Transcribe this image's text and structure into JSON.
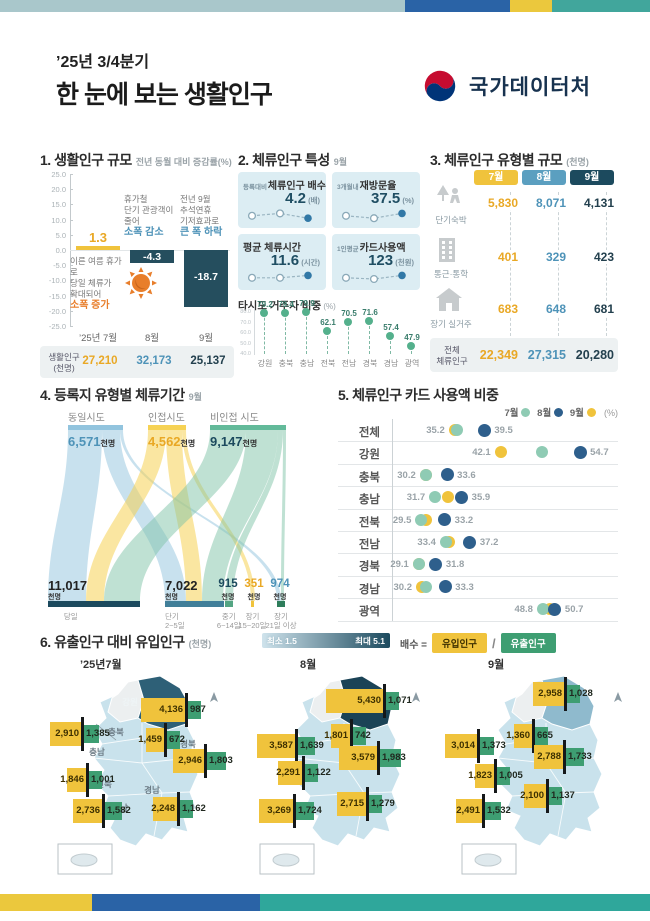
{
  "page": {
    "title_line1": "’25년 3/4분기",
    "title_line2": "한 눈에 보는 생활인구",
    "agency": "국가데이터처"
  },
  "palette": {
    "yellow": "#F0C33C",
    "yellowDeep": "#E9A825",
    "steel": "#4E93B8",
    "navy": "#1C4A5E",
    "navyBar": "#254E5E",
    "green": "#3E9E72",
    "mint": "#8FCBB4",
    "dotNavy": "#2E5F8C",
    "orange": "#E87E2B",
    "cardBg": "#DCEDF3",
    "grayBg": "#EDF1F2",
    "mapBase": "#C9E2EC",
    "mapGray": "#ECEFF0",
    "gangwonFills": [
      "#2E6077",
      "#1B4356",
      "#8FBACD"
    ],
    "srcBlue": "#92C4DE",
    "srcYellow": "#F6D254",
    "srcGreen": "#63BA9A",
    "tgtColors": [
      "#1C4A5E",
      "#417F99",
      "#54A583",
      "#F0C33C",
      "#2E7D5B"
    ],
    "tgtValueColors": [
      "#222222",
      "#222222",
      "#1C4A5E",
      "#E9A825",
      "#4E93B8"
    ]
  },
  "s1": {
    "title": "1. 생활인구 규모",
    "subtitle": "전년 동월 대비 증감률(%)",
    "yticks": [
      "25.0",
      "20.0",
      "15.0",
      "10.0",
      "5.0",
      "0.0",
      "-5.0",
      "-10.0",
      "-15.0",
      "-20.0",
      "-25.0"
    ],
    "categories": [
      "’25년 7월",
      "8월",
      "9월"
    ],
    "values": [
      1.3,
      -4.3,
      -18.7
    ],
    "value_labels": [
      "1.3",
      "-4.3",
      "-18.7"
    ],
    "annotations": [
      {
        "lines": [
          "이른 여름 휴가로",
          "당일 체류가",
          "확대되어"
        ],
        "emph": "소폭 증가",
        "tone": "orange"
      },
      {
        "lines": [
          "휴가철",
          "단기 관광객이",
          "줄어"
        ],
        "emph": "소폭 감소",
        "tone": "blue"
      },
      {
        "lines": [
          "전년 9월",
          "추석연휴",
          "기저효과로"
        ],
        "emph": "큰 폭 하락",
        "tone": "blue"
      }
    ],
    "footer": {
      "label_line1": "생활인구",
      "label_line2": "(천명)",
      "values": [
        "27,210",
        "32,173",
        "25,137"
      ]
    }
  },
  "s2": {
    "title": "2. 체류인구 특성",
    "subtitle": "9월",
    "cards": [
      {
        "prefix": "등록대비",
        "name": "체류인구 배수",
        "value": "4.2",
        "unit": "(배)",
        "spark": [
          3,
          4,
          2
        ]
      },
      {
        "prefix": "3개월내",
        "name": "재방문율",
        "value": "37.5",
        "unit": "(%)",
        "spark": [
          3,
          2,
          4
        ]
      },
      {
        "prefix": "",
        "name": "평균 체류시간",
        "value": "11.6",
        "unit": "(시간)",
        "spark": [
          3,
          3,
          4
        ]
      },
      {
        "prefix": "1인평균",
        "name": "카드사용액",
        "value": "123",
        "unit": "(천원)",
        "spark": [
          3,
          2.5,
          4
        ]
      }
    ],
    "lollipop": {
      "title": "타시도 거주자 비중",
      "unit": "(%)",
      "yticks": [
        "80.0",
        "70.0",
        "60.0",
        "50.0",
        "40.0"
      ],
      "categories": [
        "강원",
        "충북",
        "충남",
        "전북",
        "전남",
        "경북",
        "경남",
        "광역"
      ],
      "values": [
        79.2,
        79.4,
        79.9,
        62.1,
        70.5,
        71.6,
        57.4,
        47.9
      ]
    }
  },
  "s3": {
    "title": "3. 체류인구 유형별 규모",
    "unit": "(천명)",
    "months": [
      "7월",
      "8월",
      "9월"
    ],
    "rows": [
      {
        "label": "단기숙박",
        "icon": "camping-icon",
        "values": [
          "5,830",
          "8,071",
          "4,131"
        ]
      },
      {
        "label": "통근·통학",
        "icon": "building-icon",
        "values": [
          "401",
          "329",
          "423"
        ]
      },
      {
        "label": "장기 실거주",
        "icon": "house-icon",
        "values": [
          "683",
          "648",
          "681"
        ]
      }
    ],
    "total": {
      "label_line1": "전체",
      "label_line2": "체류인구",
      "values": [
        "22,349",
        "27,315",
        "20,280"
      ]
    }
  },
  "s4": {
    "title": "4. 등록지 유형별 체류기간",
    "subtitle": "9월",
    "unit_label": "천명",
    "sources": [
      {
        "label": "동일시도",
        "value": "6,571",
        "num": 6571
      },
      {
        "label": "인접시도",
        "value": "4,562",
        "num": 4562
      },
      {
        "label": "비인접 시도",
        "value": "9,147",
        "num": 9147
      }
    ],
    "targets": [
      {
        "label_lines": [
          "당일"
        ],
        "value": "11,017",
        "num": 11017
      },
      {
        "label_lines": [
          "단기",
          "2~5일"
        ],
        "value": "7,022",
        "num": 7022
      },
      {
        "label_lines": [
          "중기",
          "6~14일"
        ],
        "value": "915",
        "num": 915
      },
      {
        "label_lines": [
          "장기",
          "15~20일"
        ],
        "value": "351",
        "num": 351
      },
      {
        "label_lines": [
          "장기",
          "21일 이상"
        ],
        "value": "974",
        "num": 974
      }
    ]
  },
  "s5": {
    "title": "5. 체류인구 카드 사용액 비중",
    "unit": "(%)",
    "legend": [
      {
        "label": "7월",
        "key": "jul"
      },
      {
        "label": "8월",
        "key": "aug"
      },
      {
        "label": "9월",
        "key": "sep"
      }
    ],
    "rows": [
      {
        "label": "전체",
        "jul": 35.2,
        "aug": 39.5,
        "sep": 34.8,
        "left": "35.2",
        "right": "39.5"
      },
      {
        "label": "강원",
        "jul": 48.6,
        "aug": 54.7,
        "sep": 42.1,
        "left": "42.1",
        "right": "54.7"
      },
      {
        "label": "충북",
        "jul": 30.2,
        "aug": 33.6,
        "sep": 30.2,
        "left": "30.2",
        "right": "33.6"
      },
      {
        "label": "충남",
        "jul": 31.7,
        "aug": 35.9,
        "sep": 33.7,
        "left": "31.7",
        "right": "35.9"
      },
      {
        "label": "전북",
        "jul": 29.5,
        "aug": 33.2,
        "sep": 30.2,
        "left": "29.5",
        "right": "33.2"
      },
      {
        "label": "전남",
        "jul": 33.4,
        "aug": 37.2,
        "sep": 33.9,
        "left": "33.4",
        "right": "37.2"
      },
      {
        "label": "경북",
        "jul": 29.1,
        "aug": 31.8,
        "sep": 29.2,
        "left": "29.1",
        "right": "31.8"
      },
      {
        "label": "경남",
        "jul": 30.2,
        "aug": 33.3,
        "sep": 29.6,
        "left": "30.2",
        "right": "33.3"
      },
      {
        "label": "광역",
        "jul": 48.8,
        "aug": 50.7,
        "sep": 49.9,
        "left": "48.8",
        "right": "50.7"
      }
    ]
  },
  "s6": {
    "title": "6. 유출인구 대비 유입인구",
    "unit": "(천명)",
    "scale": {
      "min_label": "최소 1.5",
      "max_label": "최대 5.1"
    },
    "formula": {
      "prefix": "배수 =",
      "inflow_label": "유입인구",
      "slash": "/",
      "outflow_label": "유출인구"
    },
    "maps": [
      {
        "month": "’25년7월",
        "show_region_names": true,
        "regions": [
          {
            "name": "강원",
            "inflow": "4,136",
            "outflow": "987"
          },
          {
            "name": "충북",
            "inflow": "1,459",
            "outflow": "672"
          },
          {
            "name": "충남",
            "inflow": "2,910",
            "outflow": "1,385"
          },
          {
            "name": "전북",
            "inflow": "1,846",
            "outflow": "1,001"
          },
          {
            "name": "전남",
            "inflow": "2,736",
            "outflow": "1,582"
          },
          {
            "name": "경북",
            "inflow": "2,946",
            "outflow": "1,803"
          },
          {
            "name": "경남",
            "inflow": "2,248",
            "outflow": "1,162"
          }
        ]
      },
      {
        "month": "8월",
        "show_region_names": false,
        "regions": [
          {
            "name": "강원",
            "inflow": "5,430",
            "outflow": "1,071"
          },
          {
            "name": "충북",
            "inflow": "1,801",
            "outflow": "742"
          },
          {
            "name": "충남",
            "inflow": "3,587",
            "outflow": "1,639"
          },
          {
            "name": "전북",
            "inflow": "2,291",
            "outflow": "1,122"
          },
          {
            "name": "전남",
            "inflow": "3,269",
            "outflow": "1,724"
          },
          {
            "name": "경북",
            "inflow": "3,579",
            "outflow": "1,983"
          },
          {
            "name": "경남",
            "inflow": "2,715",
            "outflow": "1,279"
          }
        ]
      },
      {
        "month": "9월",
        "show_region_names": false,
        "regions": [
          {
            "name": "강원",
            "inflow": "2,958",
            "outflow": "1,028"
          },
          {
            "name": "충북",
            "inflow": "1,360",
            "outflow": "665"
          },
          {
            "name": "충남",
            "inflow": "3,014",
            "outflow": "1,373"
          },
          {
            "name": "전북",
            "inflow": "1,823",
            "outflow": "1,005"
          },
          {
            "name": "전남",
            "inflow": "2,491",
            "outflow": "1,532"
          },
          {
            "name": "경북",
            "inflow": "2,788",
            "outflow": "1,733"
          },
          {
            "name": "경남",
            "inflow": "2,100",
            "outflow": "1,137"
          }
        ]
      }
    ]
  },
  "chart_data": [
    {
      "type": "bar",
      "title": "생활인구 규모",
      "subtitle": "전년 동월 대비 증감률(%)",
      "categories": [
        "’25년 7월",
        "8월",
        "9월"
      ],
      "values": [
        1.3,
        -4.3,
        -18.7
      ],
      "ylim": [
        -25,
        25
      ],
      "footer": {
        "label": "생활인구(천명)",
        "values": [
          27210,
          32173,
          25137
        ]
      }
    },
    {
      "type": "line",
      "title": "체류인구 특성(9월)",
      "metrics": [
        {
          "name": "등록대비 체류인구 배수",
          "value": 4.2,
          "unit": "배"
        },
        {
          "name": "3개월내 재방문율",
          "value": 37.5,
          "unit": "%"
        },
        {
          "name": "평균 체류시간",
          "value": 11.6,
          "unit": "시간"
        },
        {
          "name": "1인평균 카드사용액",
          "value": 123,
          "unit": "천원"
        }
      ]
    },
    {
      "type": "bar",
      "title": "타시도 거주자 비중(%)",
      "categories": [
        "강원",
        "충북",
        "충남",
        "전북",
        "전남",
        "경북",
        "경남",
        "광역"
      ],
      "values": [
        79.2,
        79.4,
        79.9,
        62.1,
        70.5,
        71.6,
        57.4,
        47.9
      ],
      "ylim": [
        40,
        80
      ]
    },
    {
      "type": "table",
      "title": "체류인구 유형별 규모(천명)",
      "columns": [
        "7월",
        "8월",
        "9월"
      ],
      "rows": [
        [
          "단기숙박",
          5830,
          8071,
          4131
        ],
        [
          "통근·통학",
          401,
          329,
          423
        ],
        [
          "장기 실거주",
          683,
          648,
          681
        ],
        [
          "전체 체류인구",
          22349,
          27315,
          20280
        ]
      ]
    },
    {
      "type": "sankey",
      "title": "등록지 유형별 체류기간(9월, 천명)",
      "sources": [
        [
          "동일시도",
          6571
        ],
        [
          "인접시도",
          4562
        ],
        [
          "비인접 시도",
          9147
        ]
      ],
      "targets": [
        [
          "당일",
          11017
        ],
        [
          "단기 2~5일",
          7022
        ],
        [
          "중기 6~14일",
          915
        ],
        [
          "장기 15~20일",
          351
        ],
        [
          "장기 21일 이상",
          974
        ]
      ]
    },
    {
      "type": "scatter",
      "title": "체류인구 카드 사용액 비중(%)",
      "legend_position": "top-right",
      "categories": [
        "전체",
        "강원",
        "충북",
        "충남",
        "전북",
        "전남",
        "경북",
        "경남",
        "광역"
      ],
      "series": [
        {
          "name": "7월",
          "values": [
            35.2,
            48.6,
            30.2,
            31.7,
            29.5,
            33.4,
            29.1,
            30.2,
            48.8
          ]
        },
        {
          "name": "8월",
          "values": [
            39.5,
            54.7,
            33.6,
            35.9,
            33.2,
            37.2,
            31.8,
            33.3,
            50.7
          ]
        },
        {
          "name": "9월",
          "values": [
            34.8,
            42.1,
            30.2,
            33.7,
            30.2,
            33.9,
            29.2,
            29.6,
            49.9
          ],
          "note": "unlabeled dots, estimated"
        }
      ]
    },
    {
      "type": "table",
      "title": "유출인구 대비 유입인구(천명)",
      "ratio_range": [
        1.5,
        5.1
      ],
      "columns": [
        "지역",
        "7월 유입",
        "7월 유출",
        "8월 유입",
        "8월 유출",
        "9월 유입",
        "9월 유출"
      ],
      "rows": [
        [
          "강원",
          4136,
          987,
          5430,
          1071,
          2958,
          1028
        ],
        [
          "충북",
          1459,
          672,
          1801,
          742,
          1360,
          665
        ],
        [
          "충남",
          2910,
          1385,
          3587,
          1639,
          3014,
          1373
        ],
        [
          "전북",
          1846,
          1001,
          2291,
          1122,
          1823,
          1005
        ],
        [
          "전남",
          2736,
          1582,
          3269,
          1724,
          2491,
          1532
        ],
        [
          "경북",
          2946,
          1803,
          3579,
          1983,
          2788,
          1733
        ],
        [
          "경남",
          2248,
          1162,
          2715,
          1279,
          2100,
          1137
        ]
      ]
    }
  ]
}
